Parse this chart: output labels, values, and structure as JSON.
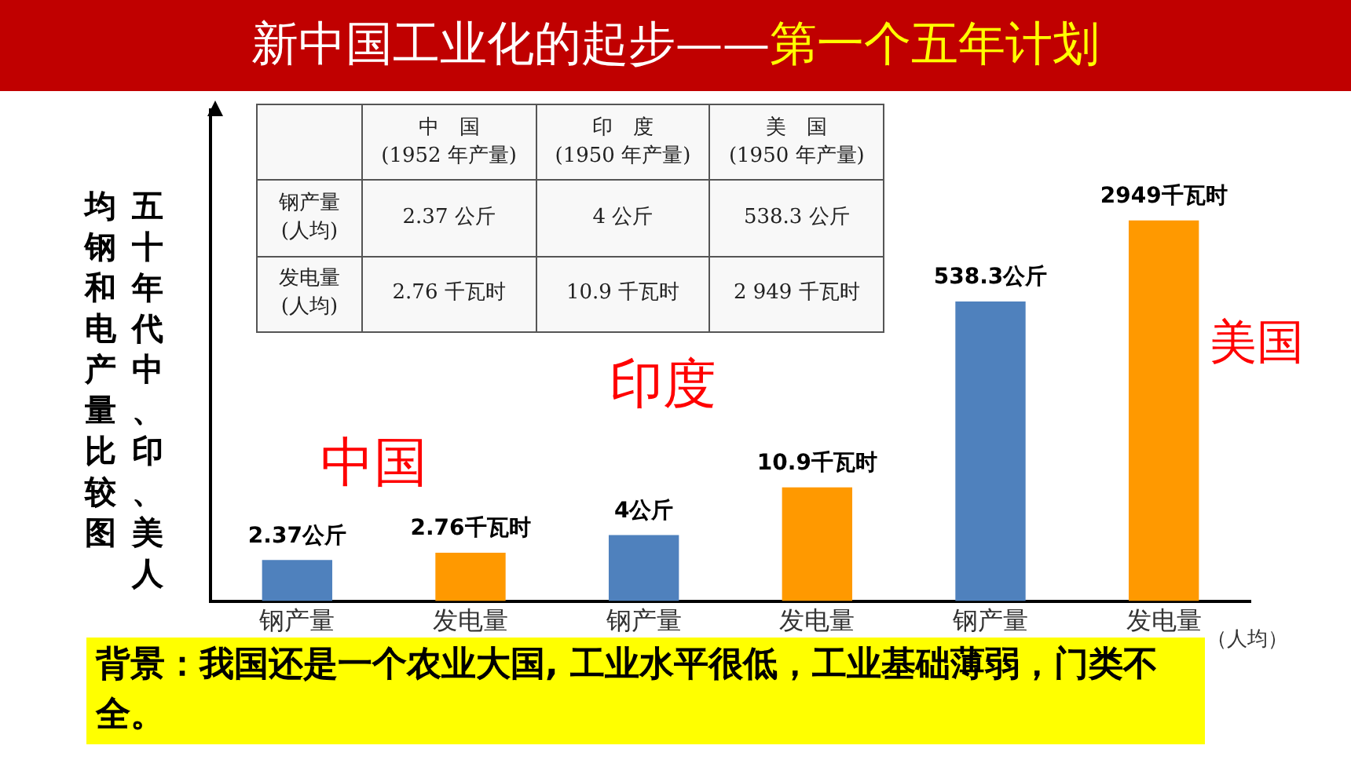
{
  "chart_data": {
    "type": "bar",
    "title": "新中国工业化的起步——",
    "subtitle": "第一个五年计划",
    "ylabel": "五十年代中、印、美人均钢和电产量比较图",
    "xlabel": "（人均）",
    "categories": [
      "钢产量",
      "发电量",
      "钢产量",
      "发电量",
      "钢产量",
      "发电量"
    ],
    "values": [
      2.37,
      2.76,
      4,
      10.9,
      538.3,
      2949
    ],
    "colors": [
      "#4f81bd",
      "#ff9900",
      "#4f81bd",
      "#ff9900",
      "#4f81bd",
      "#ff9900"
    ],
    "value_labels": [
      "2.37公斤",
      "2.76千瓦时",
      "4公斤",
      "10.9千瓦时",
      "538.3公斤",
      "2949千瓦时"
    ],
    "log": true,
    "ylim": [
      1,
      30000
    ],
    "tick_labels": "x",
    "grid": false,
    "legend": false,
    "annotations": [
      "中　国",
      "(1952 年产量)",
      "印　度",
      "(1950 年产量)",
      "美　国",
      "(1950 年产量)",
      "钢产量",
      "(人均)",
      "2.37 公斤",
      "4 公斤",
      "538.3 公斤",
      "发电量",
      "(人均)",
      "2.76 千瓦时",
      "10.9 千瓦时",
      "2 949 千瓦时",
      "中国",
      "印度",
      "美国",
      "背景：我国还是一个农业大国, 工业水平很低，工业基础薄弱，门类不全。"
    ]
  }
}
